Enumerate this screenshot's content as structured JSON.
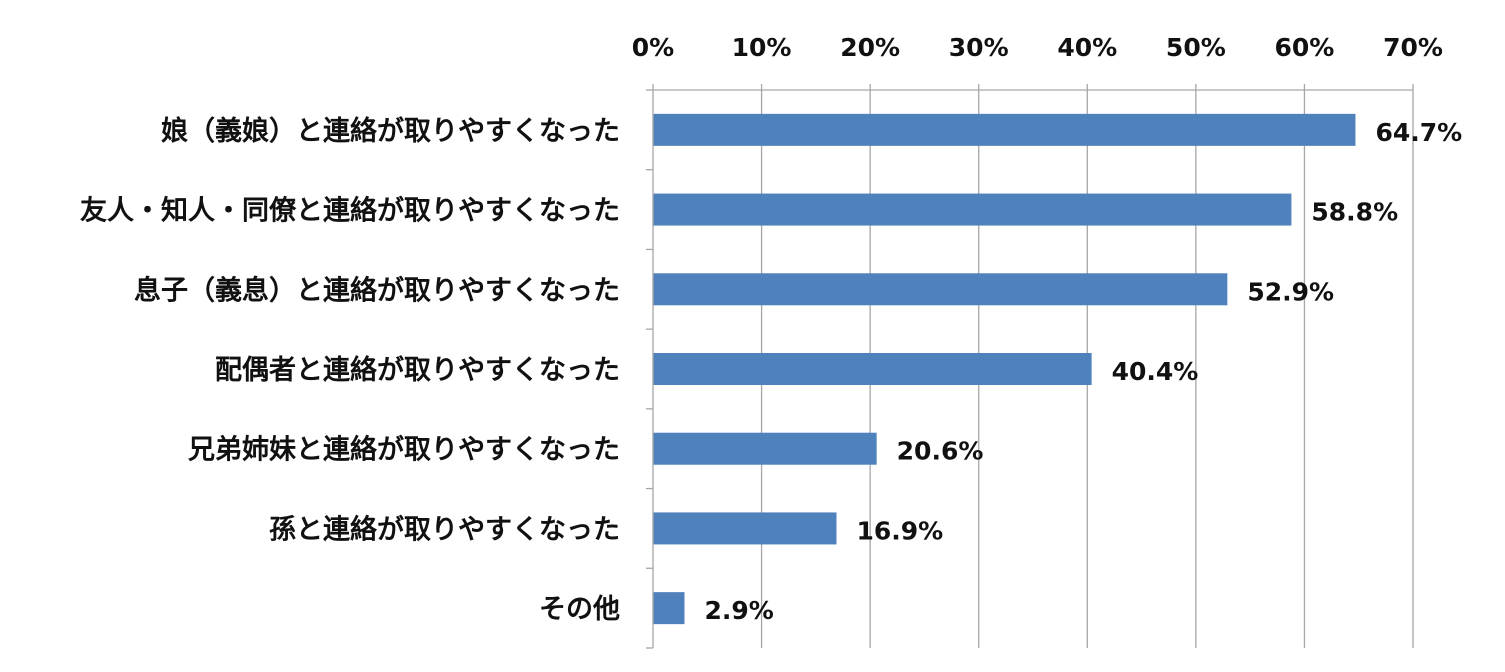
{
  "chart_data": {
    "type": "bar",
    "orientation": "horizontal",
    "title": "",
    "xlabel": "",
    "ylabel": "",
    "xlim": [
      0,
      70
    ],
    "x_ticks": [
      "0%",
      "10%",
      "20%",
      "30%",
      "40%",
      "50%",
      "60%",
      "70%"
    ],
    "x_axis_position": "top",
    "grid": true,
    "legend": "none",
    "categories": [
      "娘（義娘）と連絡が取りやすくなった",
      "友人・知人・同僚と連絡が取りやすくなった",
      "息子（義息）と連絡が取りやすくなった",
      "配偶者と連絡が取りやすくなった",
      "兄弟姉妹と連絡が取りやすくなった",
      "孫と連絡が取りやすくなった",
      "その他"
    ],
    "values": [
      64.7,
      58.8,
      52.9,
      40.4,
      20.6,
      16.9,
      2.9
    ],
    "data_labels": [
      "64.7%",
      "58.8%",
      "52.9%",
      "40.4%",
      "20.6%",
      "16.9%",
      "2.9%"
    ],
    "colors": {
      "bar": "#4f81bd",
      "grid": "#a6a6a6",
      "axis": "#a6a6a6"
    }
  }
}
